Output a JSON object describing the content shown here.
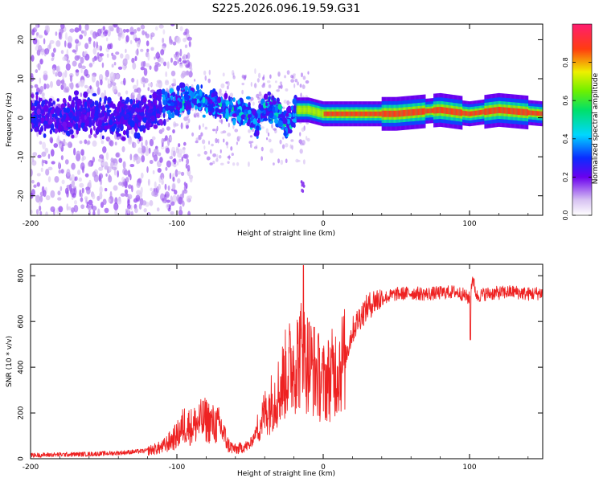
{
  "title": "S225.2026.096.19.59.G31",
  "chart_data": [
    {
      "type": "heatmap",
      "title": "S225.2026.096.19.59.G31",
      "xlabel": "Height of straight line (km)",
      "ylabel": "Frequency (Hz)",
      "xlim": [
        -200,
        150
      ],
      "ylim": [
        -25,
        24
      ],
      "xticks": [
        -200,
        -100,
        0,
        100
      ],
      "yticks": [
        -20,
        -10,
        0,
        10,
        20
      ],
      "grid": false,
      "colorbar": {
        "label": "Normalized spectral amplitude",
        "range": [
          0,
          1
        ],
        "ticks": [
          "0.0",
          "0.2",
          "0.4",
          "0.6",
          "0.8"
        ],
        "tick_values": [
          0,
          0.2,
          0.4,
          0.6,
          0.8
        ]
      },
      "description_points": {
        "center_frequency_hz": [
          [
            -200,
            1
          ],
          [
            -180,
            0
          ],
          [
            -160,
            1
          ],
          [
            -140,
            0
          ],
          [
            -120,
            1
          ],
          [
            -100,
            4
          ],
          [
            -90,
            5
          ],
          [
            -80,
            4
          ],
          [
            -70,
            3
          ],
          [
            -60,
            2
          ],
          [
            -50,
            1
          ],
          [
            -45,
            -2
          ],
          [
            -40,
            3
          ],
          [
            -30,
            1
          ],
          [
            -25,
            -2
          ],
          [
            -18,
            2
          ],
          [
            -10,
            2
          ],
          [
            0,
            1
          ],
          [
            20,
            1
          ],
          [
            50,
            1
          ],
          [
            80,
            2
          ],
          [
            100,
            1
          ],
          [
            120,
            2
          ],
          [
            150,
            1
          ]
        ]
      }
    },
    {
      "type": "line",
      "xlabel": "Height of straight line (km)",
      "ylabel": "SNR (10 * v/v)",
      "xlim": [
        -200,
        150
      ],
      "ylim": [
        0,
        850
      ],
      "xticks": [
        -200,
        -100,
        0,
        100
      ],
      "yticks": [
        0,
        200,
        400,
        600,
        800
      ],
      "grid": false,
      "series": [
        {
          "name": "SNR",
          "color": "#ee2222",
          "x": [
            -200,
            -180,
            -160,
            -140,
            -120,
            -110,
            -100,
            -95,
            -90,
            -85,
            -80,
            -75,
            -70,
            -65,
            -60,
            -55,
            -50,
            -45,
            -40,
            -35,
            -30,
            -25,
            -20,
            -15,
            -10,
            -5,
            0,
            5,
            10,
            15,
            20,
            25,
            30,
            35,
            40,
            50,
            60,
            70,
            80,
            90,
            95,
            100,
            102,
            105,
            110,
            120,
            130,
            140,
            150
          ],
          "values": [
            15,
            18,
            20,
            25,
            35,
            50,
            100,
            150,
            140,
            160,
            170,
            150,
            140,
            60,
            40,
            50,
            60,
            130,
            200,
            250,
            300,
            380,
            420,
            460,
            420,
            380,
            330,
            360,
            400,
            440,
            560,
            620,
            660,
            690,
            700,
            720,
            725,
            720,
            725,
            730,
            720,
            700,
            790,
            710,
            720,
            725,
            730,
            720,
            725
          ]
        }
      ]
    }
  ]
}
